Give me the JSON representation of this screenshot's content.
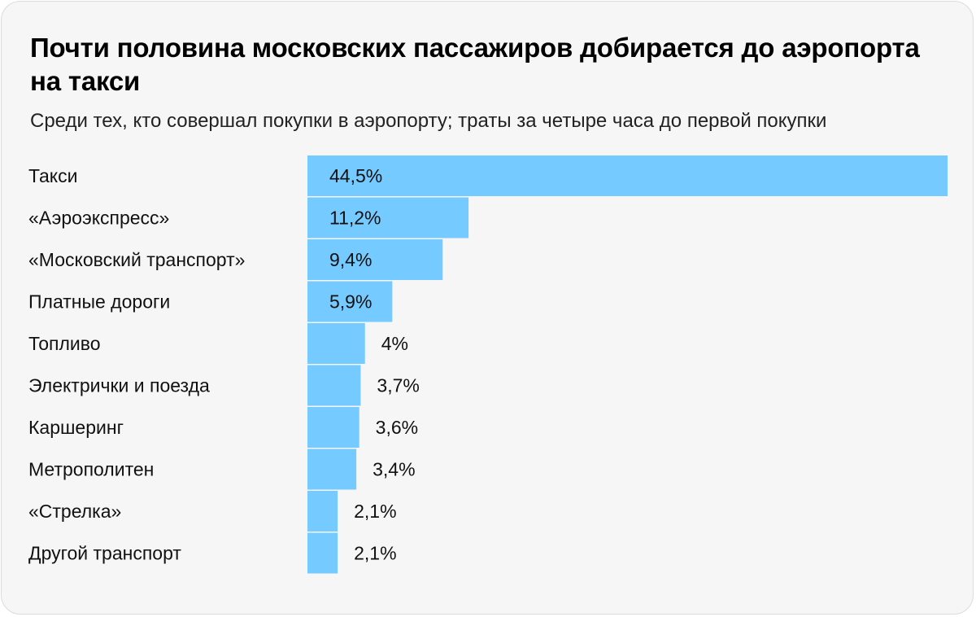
{
  "title": "Почти половина московских пассажиров добирается до аэропорта на такси",
  "subtitle": "Среди тех, кто совершал покупки в аэропорту; траты за четыре часа до первой покупки",
  "colors": {
    "bar": "#75caff",
    "background": "#f6f6f6",
    "text": "#111111"
  },
  "chart_data": {
    "type": "bar",
    "orientation": "horizontal",
    "title": "Почти половина московских пассажиров добирается до аэропорта на такси",
    "subtitle": "Среди тех, кто совершал покупки в аэропорту; траты за четыре часа до первой покупки",
    "categories": [
      "Такси",
      "«Аэроэкспресс»",
      "«Московский транспорт»",
      "Платные дороги",
      "Топливо",
      "Электрички и поезда",
      "Каршеринг",
      "Метрополитен",
      "«Стрелка»",
      "Другой транспорт"
    ],
    "values": [
      44.5,
      11.2,
      9.4,
      5.9,
      4,
      3.7,
      3.6,
      3.4,
      2.1,
      2.1
    ],
    "value_labels": [
      "44,5%",
      "11,2%",
      "9,4%",
      "5,9%",
      "4%",
      "3,7%",
      "3,6%",
      "3,4%",
      "2,1%",
      "2,1%"
    ],
    "unit": "%",
    "xlim": [
      0,
      44.5
    ],
    "xlabel": "",
    "ylabel": "",
    "grid": false,
    "legend": "none"
  }
}
